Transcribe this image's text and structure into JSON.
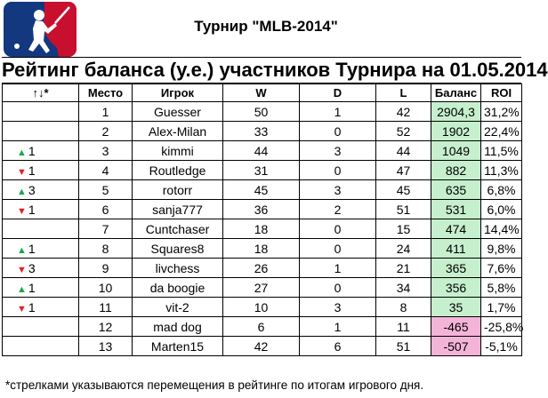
{
  "tournament_title": "Турнир \"MLB-2014\"",
  "rating_title": "Рейтинг баланса (у.е.) участников Турнира на 01.05.2014",
  "columns": [
    "↑↓*",
    "Место",
    "Игрок",
    "W",
    "D",
    "L",
    "Баланс",
    "ROI"
  ],
  "rows": [
    {
      "move": "",
      "dir": "",
      "place": "1",
      "player": "Guesser",
      "w": "50",
      "d": "1",
      "l": "42",
      "balance": "2904,3",
      "roi": "31,2%"
    },
    {
      "move": "",
      "dir": "",
      "place": "2",
      "player": "Alex-Milan",
      "w": "33",
      "d": "0",
      "l": "52",
      "balance": "1902",
      "roi": "22,4%"
    },
    {
      "move": "1",
      "dir": "up",
      "place": "3",
      "player": "kimmi",
      "w": "44",
      "d": "3",
      "l": "44",
      "balance": "1049",
      "roi": "11,5%"
    },
    {
      "move": "1",
      "dir": "down",
      "place": "4",
      "player": "Routledge",
      "w": "31",
      "d": "0",
      "l": "47",
      "balance": "882",
      "roi": "11,3%"
    },
    {
      "move": "3",
      "dir": "up",
      "place": "5",
      "player": "rotorr",
      "w": "45",
      "d": "3",
      "l": "45",
      "balance": "635",
      "roi": "6,8%"
    },
    {
      "move": "1",
      "dir": "down",
      "place": "6",
      "player": "sanja777",
      "w": "36",
      "d": "2",
      "l": "51",
      "balance": "531",
      "roi": "6,0%"
    },
    {
      "move": "",
      "dir": "",
      "place": "7",
      "player": "Cuntchaser",
      "w": "18",
      "d": "0",
      "l": "15",
      "balance": "474",
      "roi": "14,4%"
    },
    {
      "move": "1",
      "dir": "up",
      "place": "8",
      "player": "Squares8",
      "w": "18",
      "d": "0",
      "l": "24",
      "balance": "411",
      "roi": "9,8%"
    },
    {
      "move": "3",
      "dir": "down",
      "place": "9",
      "player": "livchess",
      "w": "26",
      "d": "1",
      "l": "21",
      "balance": "365",
      "roi": "7,6%"
    },
    {
      "move": "1",
      "dir": "up",
      "place": "10",
      "player": "da boogie",
      "w": "27",
      "d": "0",
      "l": "34",
      "balance": "356",
      "roi": "5,8%"
    },
    {
      "move": "1",
      "dir": "down",
      "place": "11",
      "player": "vit-2",
      "w": "10",
      "d": "3",
      "l": "8",
      "balance": "35",
      "roi": "1,7%"
    },
    {
      "move": "",
      "dir": "",
      "place": "12",
      "player": "mad dog",
      "w": "6",
      "d": "1",
      "l": "11",
      "balance": "-465",
      "roi": "-25,8%"
    },
    {
      "move": "",
      "dir": "",
      "place": "13",
      "player": "Marten15",
      "w": "42",
      "d": "6",
      "l": "51",
      "balance": "-507",
      "roi": "-5,1%"
    }
  ],
  "footnote": "*стрелками указываются перемещения в рейтинге по итогам игрового дня.",
  "colors": {
    "up": "#1aa64a",
    "down": "#e0202a",
    "balance_positive": "#c6efce",
    "balance_negative": "#f4b4d8",
    "logo_blue": "#13387f",
    "logo_red": "#c8102e"
  },
  "icons": {
    "logo": "mlb-logo-icon",
    "up": "triangle-up-icon",
    "down": "triangle-down-icon"
  }
}
